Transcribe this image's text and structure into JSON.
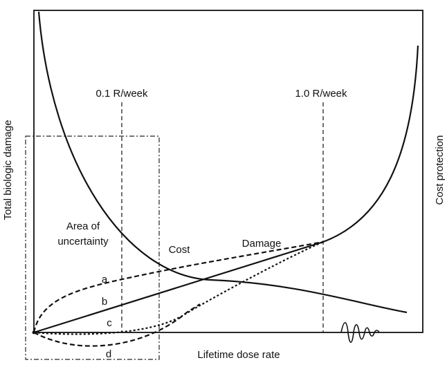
{
  "labels": {
    "marker_left": "0.1 R/week",
    "marker_right": "1.0 R/week",
    "y_left": "Total biologic damage",
    "y_right": "Cost protection",
    "x_axis": "Lifetime dose rate",
    "uncertainty_line1": "Area of",
    "uncertainty_line2": "uncertainty",
    "cost": "Cost",
    "damage": "Damage",
    "curve_a": "a",
    "curve_b": "b",
    "curve_c": "c",
    "curve_d": "d"
  },
  "colors": {
    "ink": "#111111",
    "background": "#ffffff"
  }
}
